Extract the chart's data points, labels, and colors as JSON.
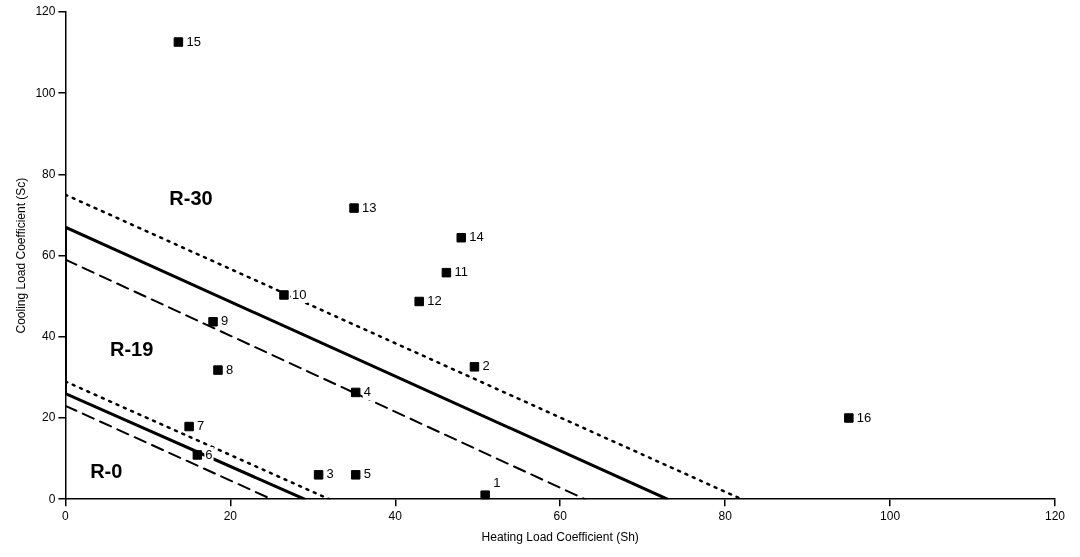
{
  "chart_data": {
    "type": "scatter",
    "xlabel": "Heating Load Coefficient (Sh)",
    "ylabel": "Cooling Load Coefficient (Sc)",
    "xlim": [
      0,
      120
    ],
    "ylim": [
      0,
      120
    ],
    "xticks": [
      0,
      20,
      40,
      60,
      80,
      100,
      120
    ],
    "yticks": [
      0,
      20,
      40,
      60,
      80,
      100,
      120
    ],
    "grid": false,
    "legend": false,
    "marker": "square",
    "series": [
      {
        "color": "#000000",
        "x": [
          50.9,
          49.6,
          30.7,
          35.2,
          35.2,
          16.0,
          15.0,
          18.5,
          17.9,
          26.5,
          46.2,
          42.9,
          35.0,
          48.0,
          13.7,
          95.0
        ],
        "values": [
          1,
          32.6,
          6,
          26.3,
          6,
          10.9,
          17.9,
          31.8,
          43.7,
          50.3,
          55.8,
          48.7,
          71.7,
          64.4,
          112.6,
          20
        ]
      },
      {
        "type": "line",
        "color": "#000000",
        "line_style": "solid",
        "marker": "none",
        "x": [
          73,
          0,
          0,
          29
        ],
        "values": [
          0,
          67,
          26,
          0
        ]
      },
      {
        "type": "line",
        "color": "#000000",
        "line_style": "dotted",
        "marker": "none",
        "x": [
          0,
          82
        ],
        "values": [
          75,
          0
        ]
      },
      {
        "type": "line",
        "color": "#000000",
        "line_style": "dashed",
        "marker": "none",
        "x": [
          0,
          63
        ],
        "values": [
          59,
          0
        ]
      },
      {
        "type": "line",
        "color": "#000000",
        "line_style": "dotted",
        "marker": "none",
        "x": [
          0,
          32
        ],
        "values": [
          29,
          0
        ]
      },
      {
        "type": "line",
        "color": "#000000",
        "line_style": "dashed",
        "marker": "none",
        "x": [
          0,
          25
        ],
        "values": [
          23,
          0
        ]
      }
    ],
    "annotations": [
      "R-30",
      "R-19",
      "R-0",
      {
        "text": "1",
        "x": 50.9,
        "y": 1
      },
      {
        "text": "2",
        "x": 49.6,
        "y": 32.6
      },
      {
        "text": "3",
        "x": 30.7,
        "y": 6
      },
      {
        "text": "4",
        "x": 35.2,
        "y": 26.3
      },
      {
        "text": "5",
        "x": 35.2,
        "y": 6
      },
      {
        "text": "6",
        "x": 16.0,
        "y": 10.9
      },
      {
        "text": "7",
        "x": 15.0,
        "y": 17.9
      },
      {
        "text": "8",
        "x": 18.5,
        "y": 31.8
      },
      {
        "text": "9",
        "x": 17.9,
        "y": 43.7
      },
      {
        "text": "10",
        "x": 26.5,
        "y": 50.3
      },
      {
        "text": "11",
        "x": 46.2,
        "y": 55.8
      },
      {
        "text": "12",
        "x": 42.9,
        "y": 48.7
      },
      {
        "text": "13",
        "x": 35.0,
        "y": 71.7
      },
      {
        "text": "14",
        "x": 48.0,
        "y": 64.4
      },
      {
        "text": "15",
        "x": 13.7,
        "y": 112.6
      },
      {
        "text": "16",
        "x": 95.0,
        "y": 20
      }
    ]
  }
}
